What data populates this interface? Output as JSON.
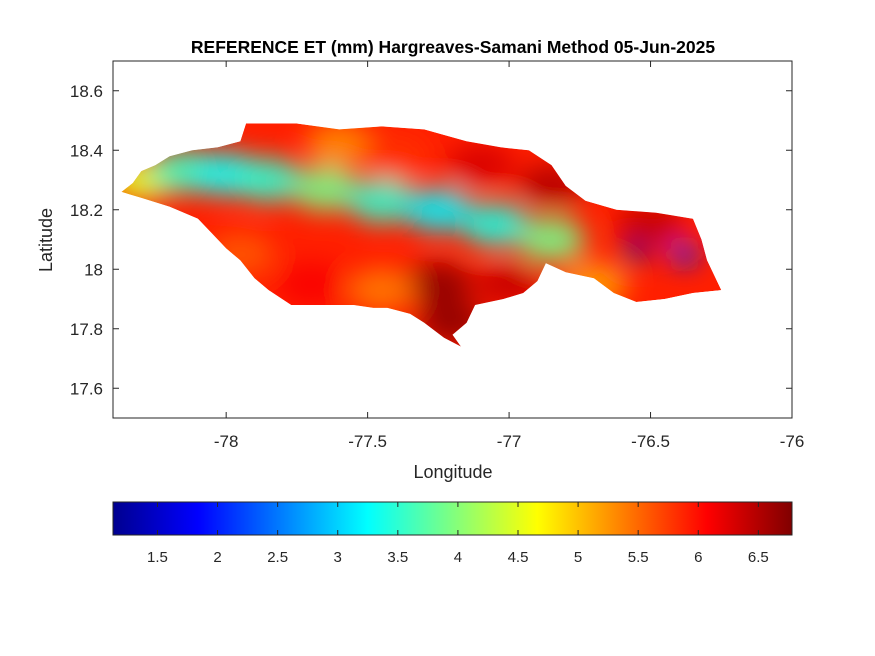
{
  "chart_data": {
    "type": "heatmap",
    "title": "REFERENCE ET (mm) Hargreaves-Samani Method  05-Jun-2025",
    "xlabel": "Longitude",
    "ylabel": "Latitude",
    "xlim": [
      -78.4,
      -76
    ],
    "ylim": [
      17.5,
      18.7
    ],
    "xticks": [
      -78,
      -77.5,
      -77,
      -76.5,
      -76
    ],
    "xtick_labels": [
      "-78",
      "-77.5",
      "-77",
      "-76.5",
      "-76"
    ],
    "yticks": [
      17.6,
      17.8,
      18,
      18.2,
      18.4,
      18.6
    ],
    "ytick_labels": [
      "17.6",
      "17.8",
      "18",
      "18.2",
      "18.4",
      "18.6"
    ],
    "grid": false,
    "colormap": "jet",
    "colorbar": {
      "orientation": "horizontal",
      "placement": "bottom",
      "range": [
        1.13,
        6.78
      ],
      "ticks": [
        1.5,
        2,
        2.5,
        3,
        3.5,
        4,
        4.5,
        5,
        5.5,
        6,
        6.5
      ],
      "tick_labels": [
        "1.5",
        "2",
        "2.5",
        "3",
        "3.5",
        "4",
        "4.5",
        "5",
        "5.5",
        "6",
        "6.5"
      ]
    },
    "field_points": [
      [
        -78.3,
        18.3,
        4.5
      ],
      [
        -78.15,
        18.33,
        3.6
      ],
      [
        -78.0,
        18.32,
        3.3
      ],
      [
        -77.85,
        18.3,
        3.5
      ],
      [
        -77.65,
        18.27,
        3.9
      ],
      [
        -77.45,
        18.23,
        3.5
      ],
      [
        -77.25,
        18.2,
        3.2
      ],
      [
        -77.05,
        18.15,
        3.4
      ],
      [
        -76.85,
        18.1,
        3.9
      ],
      [
        -76.55,
        18.06,
        1.2
      ],
      [
        -76.38,
        18.05,
        2.0
      ],
      [
        -77.6,
        18.42,
        5.3
      ],
      [
        -77.4,
        18.38,
        5.8
      ],
      [
        -77.1,
        18.35,
        6.3
      ],
      [
        -76.85,
        18.28,
        6.5
      ],
      [
        -76.5,
        18.15,
        6.4
      ],
      [
        -77.25,
        17.95,
        6.7
      ],
      [
        -77.0,
        17.95,
        6.4
      ],
      [
        -77.2,
        17.82,
        6.7
      ],
      [
        -77.95,
        18.05,
        5.6
      ],
      [
        -77.7,
        17.95,
        6.1
      ],
      [
        -77.45,
        17.93,
        5.4
      ],
      [
        -76.7,
        17.95,
        5.2
      ]
    ]
  }
}
